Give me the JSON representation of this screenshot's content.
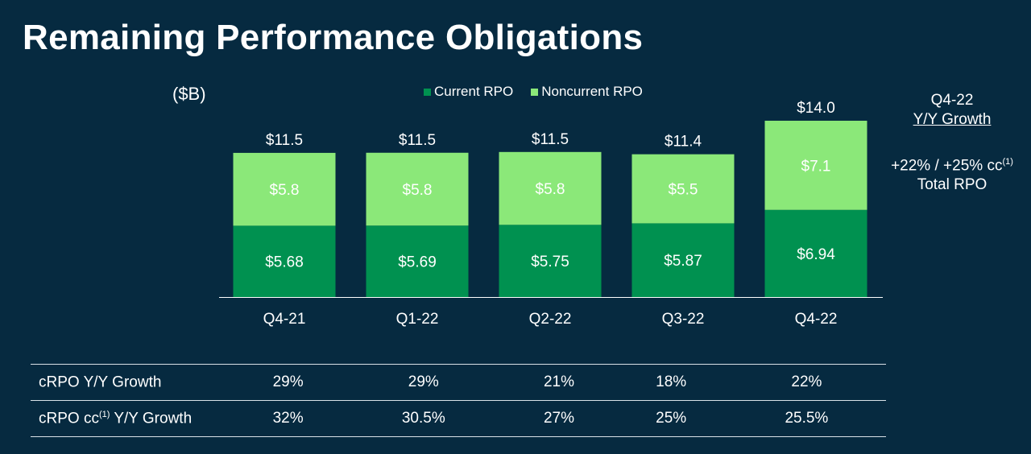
{
  "title": "Remaining Performance Obligations",
  "unit_label": "($B)",
  "colors": {
    "background": "#062a40",
    "current": "#009150",
    "noncurrent": "#8be879",
    "text": "#ffffff",
    "axis": "#ffffff"
  },
  "chart_data": {
    "type": "bar",
    "stacked": true,
    "title": "Remaining Performance Obligations",
    "ylabel": "($B)",
    "categories": [
      "Q4-21",
      "Q1-22",
      "Q2-22",
      "Q3-22",
      "Q4-22"
    ],
    "series": [
      {
        "name": "Current RPO",
        "values": [
          5.68,
          5.69,
          5.75,
          5.87,
          6.94
        ],
        "labels": [
          "$5.68",
          "$5.69",
          "$5.75",
          "$5.87",
          "$6.94"
        ]
      },
      {
        "name": "Noncurrent RPO",
        "values": [
          5.8,
          5.8,
          5.8,
          5.5,
          7.1
        ],
        "labels": [
          "$5.8",
          "$5.8",
          "$5.8",
          "$5.5",
          "$7.1"
        ]
      }
    ],
    "totals": [
      "$11.5",
      "$11.5",
      "$11.5",
      "$11.4",
      "$14.0"
    ],
    "legend_position": "top-center"
  },
  "side_note": {
    "period": "Q4-22",
    "heading": "Y/Y Growth",
    "growth_text": "+22% / +25% cc",
    "footnote_mark": "(1)",
    "metric": "Total RPO"
  },
  "table": {
    "rows": [
      {
        "label": "cRPO Y/Y Growth",
        "label_suffix": "",
        "footnote": "",
        "values": [
          "29%",
          "29%",
          "21%",
          "18%",
          "22%"
        ]
      },
      {
        "label": "cRPO cc",
        "label_suffix": " Y/Y Growth",
        "footnote": "(1)",
        "values": [
          "32%",
          "30.5%",
          "27%",
          "25%",
          "25.5%"
        ]
      }
    ]
  }
}
